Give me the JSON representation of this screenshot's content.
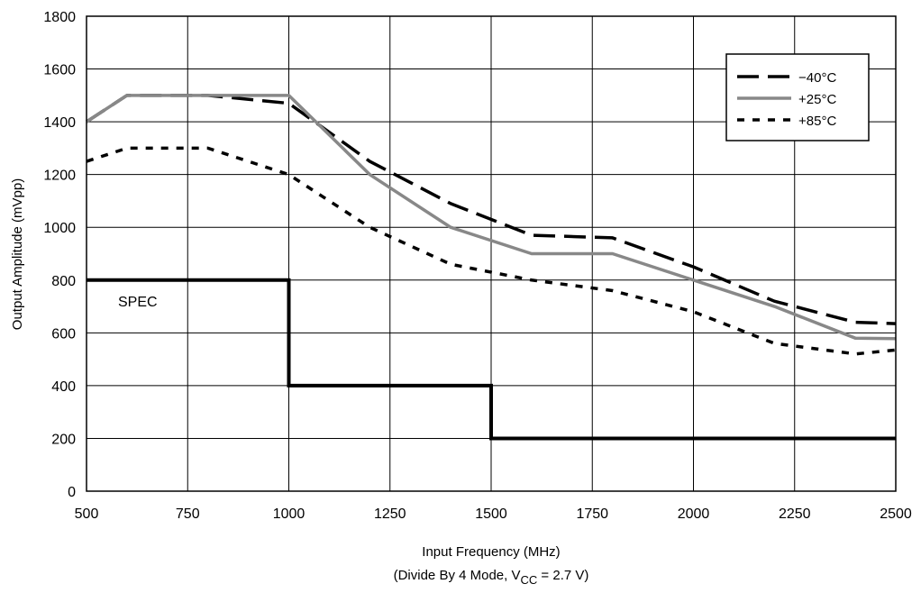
{
  "chart_data": {
    "type": "line",
    "xlabel": "Input Frequency (MHz)",
    "subtitle_prefix": "(Divide By 4 Mode, V",
    "subtitle_sub": "CC",
    "subtitle_suffix": " = 2.7 V)",
    "ylabel": "Output Amplitude (mVpp)",
    "xlim": [
      500,
      2500
    ],
    "ylim": [
      0,
      1800
    ],
    "xticks": [
      500,
      750,
      1000,
      1250,
      1500,
      1750,
      2000,
      2250,
      2500
    ],
    "yticks": [
      0,
      200,
      400,
      600,
      800,
      1000,
      1200,
      1400,
      1600,
      1800
    ],
    "grid": true,
    "legend_position": "top-right",
    "series": [
      {
        "name": "−40°C",
        "color": "#000000",
        "style": "dashed",
        "x": [
          500,
          600,
          800,
          1000,
          1200,
          1400,
          1600,
          1800,
          2000,
          2200,
          2400,
          2500
        ],
        "y": [
          1400,
          1500,
          1500,
          1470,
          1250,
          1090,
          970,
          960,
          850,
          720,
          640,
          635
        ]
      },
      {
        "name": "+25°C",
        "color": "#888888",
        "style": "solid",
        "x": [
          500,
          600,
          800,
          1000,
          1200,
          1400,
          1600,
          1800,
          2000,
          2200,
          2400,
          2500
        ],
        "y": [
          1400,
          1500,
          1500,
          1500,
          1200,
          1000,
          900,
          900,
          800,
          700,
          580,
          578
        ]
      },
      {
        "name": "+85°C",
        "color": "#000000",
        "style": "dotted",
        "x": [
          500,
          600,
          800,
          1000,
          1200,
          1400,
          1600,
          1800,
          2000,
          2200,
          2400,
          2500
        ],
        "y": [
          1250,
          1300,
          1300,
          1200,
          1000,
          860,
          800,
          760,
          680,
          560,
          520,
          535
        ]
      }
    ],
    "spec": {
      "label": "SPEC",
      "color": "#000000",
      "x": [
        500,
        1000,
        1000,
        1500,
        1500,
        2500
      ],
      "y": [
        800,
        800,
        400,
        400,
        200,
        200
      ]
    }
  }
}
